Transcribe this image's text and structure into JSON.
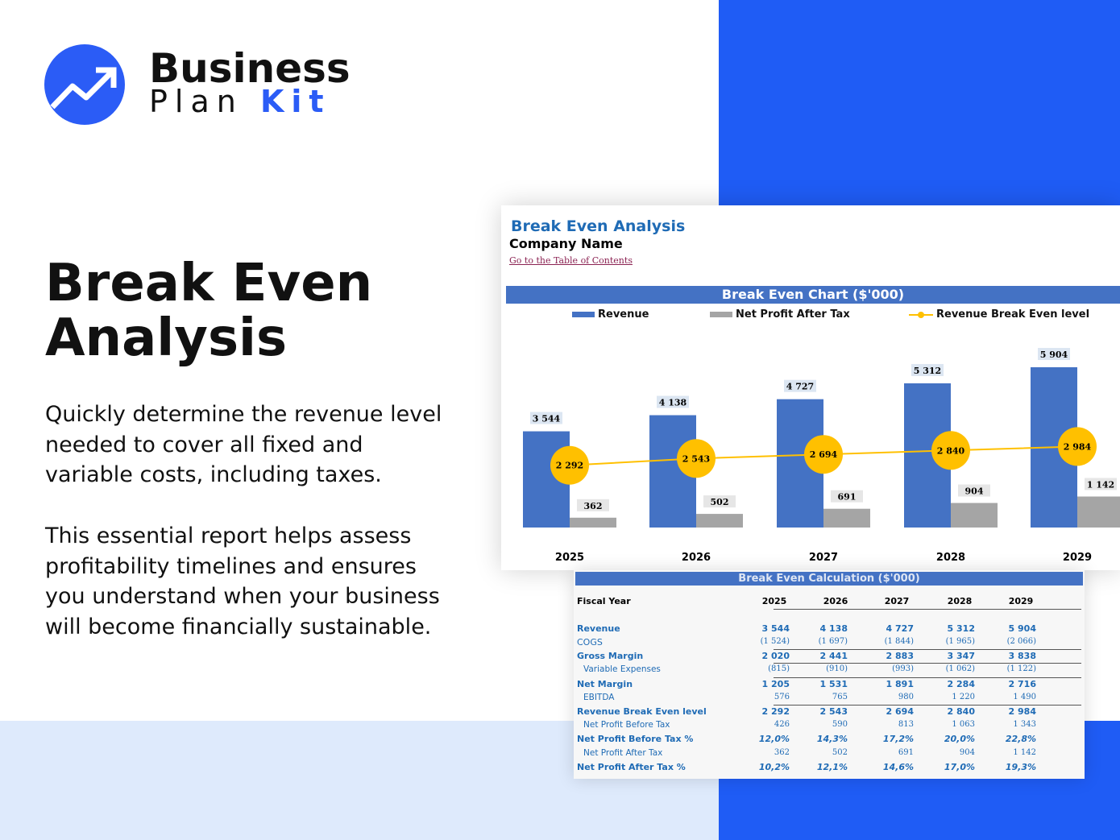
{
  "brand": {
    "line1": "Business",
    "line2a": "Plan",
    "line2b": "Kit",
    "accent": "#1f5cf5"
  },
  "hero": {
    "title_line1": "Break Even",
    "title_line2": "Analysis",
    "para1": "Quickly determine the revenue level needed to cover all fixed and variable costs, including taxes.",
    "para2": "This essential report helps assess profitability timelines and ensures you understand when your business will become financially sustainable."
  },
  "sheet": {
    "title": "Break Even Analysis",
    "company": "Company Name",
    "toc_link": "Go to the Table of Contents"
  },
  "chart_data": {
    "type": "bar",
    "title": "Break Even Chart ($'000)",
    "categories": [
      "2025",
      "2026",
      "2027",
      "2028",
      "2029"
    ],
    "series": [
      {
        "name": "Revenue",
        "type": "bar",
        "color": "#4472c4",
        "values": [
          3544,
          4138,
          4727,
          5312,
          5904
        ],
        "labels": [
          "3 544",
          "4 138",
          "4 727",
          "5 312",
          "5 904"
        ]
      },
      {
        "name": "Net Profit After Tax",
        "type": "bar",
        "color": "#a5a5a5",
        "values": [
          362,
          502,
          691,
          904,
          1142
        ],
        "labels": [
          "362",
          "502",
          "691",
          "904",
          "1 142"
        ]
      },
      {
        "name": "Revenue Break Even level",
        "type": "line",
        "color": "#ffc000",
        "values": [
          2292,
          2543,
          2694,
          2840,
          2984
        ],
        "labels": [
          "2 292",
          "2 543",
          "2 694",
          "2 840",
          "2 984"
        ]
      }
    ],
    "legend": "top",
    "grid": false
  },
  "table": {
    "title": "Break Even Calculation ($'000)",
    "header": "Fiscal Year",
    "years": [
      "2025",
      "2026",
      "2027",
      "2028",
      "2029"
    ],
    "rows": [
      {
        "label": "Revenue",
        "style": "bold",
        "values": [
          "3 544",
          "4 138",
          "4 727",
          "5 312",
          "5 904"
        ]
      },
      {
        "label": "COGS",
        "style": "plain",
        "values": [
          "(1 524)",
          "(1 697)",
          "(1 844)",
          "(1 965)",
          "(2 066)"
        ]
      },
      {
        "label": "Gross Margin",
        "style": "bold",
        "values": [
          "2 020",
          "2 441",
          "2 883",
          "3 347",
          "3 838"
        ]
      },
      {
        "label": "Variable Expenses",
        "style": "ind",
        "values": [
          "(815)",
          "(910)",
          "(993)",
          "(1 062)",
          "(1 122)"
        ]
      },
      {
        "label": "Net Margin",
        "style": "bold",
        "values": [
          "1 205",
          "1 531",
          "1 891",
          "2 284",
          "2 716"
        ]
      },
      {
        "label": "EBITDA",
        "style": "ind",
        "values": [
          "576",
          "765",
          "980",
          "1 220",
          "1 490"
        ]
      },
      {
        "label": "Revenue Break Even level",
        "style": "bold",
        "values": [
          "2 292",
          "2 543",
          "2 694",
          "2 840",
          "2 984"
        ]
      },
      {
        "label": "Net Profit Before Tax",
        "style": "ind",
        "values": [
          "426",
          "590",
          "813",
          "1 063",
          "1 343"
        ]
      },
      {
        "label": "Net Profit Before Tax %",
        "style": "pct",
        "values": [
          "12,0%",
          "14,3%",
          "17,2%",
          "20,0%",
          "22,8%"
        ]
      },
      {
        "label": "Net Profit After Tax",
        "style": "ind",
        "values": [
          "362",
          "502",
          "691",
          "904",
          "1 142"
        ]
      },
      {
        "label": "Net Profit After Tax %",
        "style": "pct",
        "values": [
          "10,2%",
          "12,1%",
          "14,6%",
          "17,0%",
          "19,3%"
        ]
      }
    ]
  }
}
